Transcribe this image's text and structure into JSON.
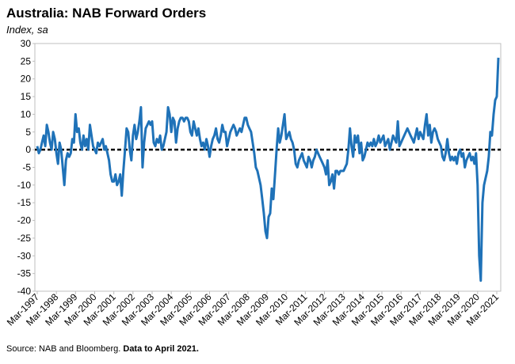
{
  "chart_data": {
    "type": "line",
    "title": "Australia: NAB Forward Orders",
    "subtitle": "Index, sa",
    "source": "Source: NAB and Bloomberg.",
    "note": "Data to April 2021.",
    "categories": [
      "Mar-1997",
      null,
      null,
      null,
      null,
      null,
      null,
      null,
      null,
      null,
      null,
      null,
      "Mar-1998",
      null,
      null,
      null,
      null,
      null,
      null,
      null,
      null,
      null,
      null,
      null,
      "Mar-1999",
      null,
      null,
      null,
      null,
      null,
      null,
      null,
      null,
      null,
      null,
      null,
      "Mar-2000",
      null,
      null,
      null,
      null,
      null,
      null,
      null,
      null,
      null,
      null,
      null,
      "Mar-2001",
      null,
      null,
      null,
      null,
      null,
      null,
      null,
      null,
      null,
      null,
      null,
      "Mar-2002",
      null,
      null,
      null,
      null,
      null,
      null,
      null,
      null,
      null,
      null,
      null,
      "Mar-2003",
      null,
      null,
      null,
      null,
      null,
      null,
      null,
      null,
      null,
      null,
      null,
      "Mar-2004",
      null,
      null,
      null,
      null,
      null,
      null,
      null,
      null,
      null,
      null,
      null,
      "Mar-2005",
      null,
      null,
      null,
      null,
      null,
      null,
      null,
      null,
      null,
      null,
      null,
      "Mar-2006",
      null,
      null,
      null,
      null,
      null,
      null,
      null,
      null,
      null,
      null,
      null,
      "Mar-2007",
      null,
      null,
      null,
      null,
      null,
      null,
      null,
      null,
      null,
      null,
      null,
      "Mar-2008",
      null,
      null,
      null,
      null,
      null,
      null,
      null,
      null,
      null,
      null,
      null,
      "Mar-2009",
      null,
      null,
      null,
      null,
      null,
      null,
      null,
      null,
      null,
      null,
      null,
      "Mar-2010",
      null,
      null,
      null,
      null,
      null,
      null,
      null,
      null,
      null,
      null,
      null,
      "Mar-2011",
      null,
      null,
      null,
      null,
      null,
      null,
      null,
      null,
      null,
      null,
      null,
      "Mar-2012",
      null,
      null,
      null,
      null,
      null,
      null,
      null,
      null,
      null,
      null,
      null,
      "Mar-2013",
      null,
      null,
      null,
      null,
      null,
      null,
      null,
      null,
      null,
      null,
      null,
      "Mar-2014",
      null,
      null,
      null,
      null,
      null,
      null,
      null,
      null,
      null,
      null,
      null,
      "Mar-2015",
      null,
      null,
      null,
      null,
      null,
      null,
      null,
      null,
      null,
      null,
      null,
      "Mar-2016",
      null,
      null,
      null,
      null,
      null,
      null,
      null,
      null,
      null,
      null,
      null,
      "Mar-2017",
      null,
      null,
      null,
      null,
      null,
      null,
      null,
      null,
      null,
      null,
      null,
      "Mar-2018",
      null,
      null,
      null,
      null,
      null,
      null,
      null,
      null,
      null,
      null,
      null,
      "Mar-2019",
      null,
      null,
      null,
      null,
      null,
      null,
      null,
      null,
      null,
      null,
      null,
      "Mar-2020",
      null,
      null,
      null,
      null,
      null,
      null,
      null,
      null,
      null,
      null,
      null,
      "Mar-2021",
      null
    ],
    "series": [
      {
        "name": "NAB Forward Orders",
        "color": "#1f72b8",
        "values": [
          1,
          -1,
          0,
          2,
          4,
          1,
          7,
          5,
          2,
          0,
          5,
          3,
          -1,
          -4,
          2,
          0,
          -5,
          -10,
          -3,
          -1,
          -2,
          -1,
          3,
          2,
          10,
          5,
          6,
          2,
          0,
          4,
          1,
          3,
          0,
          7,
          4,
          1,
          0,
          -1,
          2,
          1,
          2,
          3,
          0,
          1,
          -1,
          -3,
          -7,
          -9,
          -9,
          -7,
          -10,
          -9,
          -7,
          -13,
          -6,
          0,
          6,
          5,
          0,
          -3,
          4,
          7,
          3,
          5,
          8,
          12,
          -5,
          2,
          6,
          7,
          8,
          7,
          8,
          2,
          1,
          3,
          2,
          4,
          0,
          1,
          3,
          5,
          12,
          10,
          5,
          9,
          8,
          2,
          6,
          8,
          9,
          9,
          8,
          9,
          9,
          8,
          5,
          4,
          8,
          6,
          4,
          6,
          3,
          1,
          2,
          0,
          3,
          1,
          -2,
          1,
          3,
          4,
          6,
          3,
          2,
          4,
          7,
          5,
          5,
          1,
          3,
          5,
          6,
          7,
          6,
          4,
          5,
          6,
          5,
          7,
          9,
          9,
          7,
          6,
          5,
          2,
          -1,
          -5,
          -6,
          -8,
          -10,
          -14,
          -18,
          -23,
          -25,
          -19,
          -18,
          -11,
          -14,
          -7,
          0,
          6,
          2,
          4,
          7,
          10,
          3,
          4,
          5,
          3,
          2,
          0,
          -4,
          -5,
          -3,
          -2,
          -1,
          -3,
          -4,
          -5,
          -2,
          -3,
          -5,
          -3,
          -2,
          0,
          -1,
          -2,
          -3,
          -4,
          -5,
          -7,
          -3,
          -10,
          -9,
          -7,
          -11,
          -6,
          -6,
          -7,
          -6,
          -6,
          -6,
          -5,
          -4,
          0,
          6,
          1,
          -2,
          4,
          2,
          4,
          -1,
          2,
          -3,
          -2,
          0,
          2,
          1,
          2,
          1,
          3,
          1,
          2,
          4,
          2,
          3,
          4,
          1,
          2,
          3,
          0,
          2,
          4,
          3,
          2,
          8,
          1,
          2,
          3,
          4,
          5,
          6,
          5,
          4,
          3,
          2,
          4,
          6,
          3,
          5,
          4,
          3,
          7,
          10,
          4,
          7,
          2,
          5,
          6,
          5,
          3,
          2,
          1,
          -2,
          -3,
          -1,
          3,
          -1,
          -3,
          -2,
          -3,
          -2,
          -4,
          -1,
          0,
          -2,
          -1,
          -5,
          -3,
          -2,
          -1,
          -3,
          -2,
          -4,
          -1,
          -10,
          -30,
          -37,
          -15,
          -10,
          -8,
          -6,
          -2,
          5,
          4,
          10,
          14,
          15,
          26
        ]
      }
    ],
    "ylim": [
      -40,
      30
    ],
    "yticks": [
      -40,
      -35,
      -30,
      -25,
      -20,
      -15,
      -10,
      -5,
      0,
      5,
      10,
      15,
      20,
      25,
      30
    ],
    "grid": false
  }
}
